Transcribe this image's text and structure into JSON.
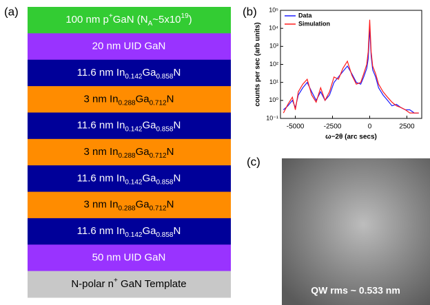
{
  "panel_labels": [
    "(a)",
    "(b)",
    "(c)"
  ],
  "layer_stack": [
    {
      "color": "#33cc33",
      "text_color": "#ffffff",
      "parts": [
        {
          "text": "100 nm p"
        },
        {
          "sup": "+"
        },
        {
          "text": "GaN (N"
        },
        {
          "sub": "A"
        },
        {
          "text": "~5x10"
        },
        {
          "sup": "19"
        },
        {
          "text": ")"
        }
      ]
    },
    {
      "color": "#9933ff",
      "text_color": "#ffffff",
      "parts": [
        {
          "text": "20 nm UID GaN"
        }
      ]
    },
    {
      "color": "#000099",
      "text_color": "#ffffff",
      "parts": [
        {
          "text": "11.6 nm In"
        },
        {
          "sub": "0.142"
        },
        {
          "text": "Ga"
        },
        {
          "sub": "0.858"
        },
        {
          "text": "N"
        }
      ]
    },
    {
      "color": "#ff8c00",
      "text_color": "#000000",
      "parts": [
        {
          "text": "3 nm In"
        },
        {
          "sub": "0.288"
        },
        {
          "text": "Ga"
        },
        {
          "sub": "0.712"
        },
        {
          "text": "N"
        }
      ]
    },
    {
      "color": "#000099",
      "text_color": "#ffffff",
      "parts": [
        {
          "text": "11.6 nm In"
        },
        {
          "sub": "0.142"
        },
        {
          "text": "Ga"
        },
        {
          "sub": "0.858"
        },
        {
          "text": "N"
        }
      ]
    },
    {
      "color": "#ff8c00",
      "text_color": "#000000",
      "parts": [
        {
          "text": "3 nm In"
        },
        {
          "sub": "0.288"
        },
        {
          "text": "Ga"
        },
        {
          "sub": "0.712"
        },
        {
          "text": "N"
        }
      ]
    },
    {
      "color": "#000099",
      "text_color": "#ffffff",
      "parts": [
        {
          "text": "11.6 nm In"
        },
        {
          "sub": "0.142"
        },
        {
          "text": "Ga"
        },
        {
          "sub": "0.858"
        },
        {
          "text": "N"
        }
      ]
    },
    {
      "color": "#ff8c00",
      "text_color": "#000000",
      "parts": [
        {
          "text": "3 nm In"
        },
        {
          "sub": "0.288"
        },
        {
          "text": "Ga"
        },
        {
          "sub": "0.712"
        },
        {
          "text": "N"
        }
      ]
    },
    {
      "color": "#000099",
      "text_color": "#ffffff",
      "parts": [
        {
          "text": "11.6 nm In"
        },
        {
          "sub": "0.142"
        },
        {
          "text": "Ga"
        },
        {
          "sub": "0.858"
        },
        {
          "text": "N"
        }
      ]
    },
    {
      "color": "#9933ff",
      "text_color": "#ffffff",
      "parts": [
        {
          "text": "50 nm UID GaN"
        }
      ]
    },
    {
      "color": "#c8c8c8",
      "text_color": "#000000",
      "parts": [
        {
          "text": "N-polar n"
        },
        {
          "sup": "+"
        },
        {
          "text": " GaN Template"
        }
      ]
    }
  ],
  "afm_caption": "QW rms ~ 0.533 nm",
  "chart_data": {
    "type": "line",
    "x_label": "ω−2θ (arc secs)",
    "y_label": "counts per sec (arb units)",
    "yscale": "log",
    "legend": "upper-left",
    "xlim": [
      -6000,
      3500
    ],
    "xticks": [
      -5000,
      -2500,
      0,
      2500
    ],
    "ylim": [
      0.1,
      100000
    ],
    "yticks": [
      {
        "value": 0.1,
        "label": "10⁻¹"
      },
      {
        "value": 1,
        "label": "10⁰"
      },
      {
        "value": 10,
        "label": "10¹"
      },
      {
        "value": 100,
        "label": "10²"
      },
      {
        "value": 1000,
        "label": "10³"
      },
      {
        "value": 10000,
        "label": "10⁴"
      },
      {
        "value": 100000,
        "label": "10⁵"
      }
    ],
    "x": [
      -5800,
      -5500,
      -5200,
      -5000,
      -4800,
      -4500,
      -4200,
      -3900,
      -3600,
      -3300,
      -3000,
      -2700,
      -2400,
      -2100,
      -1800,
      -1500,
      -1200,
      -900,
      -600,
      -400,
      -200,
      -100,
      0,
      100,
      200,
      400,
      600,
      900,
      1200,
      1500,
      1800,
      2100,
      2400,
      2700,
      3000,
      3300
    ],
    "series": [
      {
        "name": "Data",
        "color": "#1a1aff",
        "values": [
          0.3,
          0.5,
          1,
          0.4,
          2,
          5,
          10,
          3,
          1,
          3,
          1,
          2,
          10,
          20,
          40,
          80,
          30,
          10,
          8,
          20,
          60,
          200,
          10000,
          300,
          50,
          20,
          5,
          2,
          1,
          0.5,
          0.6,
          0.4,
          0.3,
          0.3,
          0.2,
          0.2
        ]
      },
      {
        "name": "Simulation",
        "color": "#ff1a1a",
        "values": [
          0.2,
          0.6,
          1.5,
          0.3,
          3,
          8,
          15,
          2,
          0.8,
          5,
          1,
          3,
          20,
          15,
          60,
          150,
          25,
          8,
          10,
          30,
          100,
          500,
          30000,
          500,
          80,
          30,
          8,
          3,
          1.5,
          0.8,
          0.5,
          0.4,
          0.3,
          0.2,
          0.2,
          0.2
        ]
      }
    ]
  }
}
